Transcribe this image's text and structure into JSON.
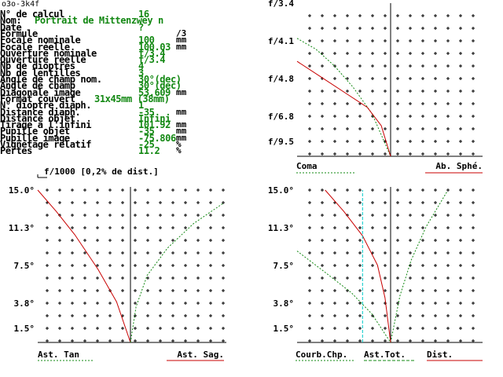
{
  "window_title": "o3o-3k4f",
  "params": [
    {
      "label": "N° de calcul",
      "value": "16",
      "unit": ""
    },
    {
      "label": "Nom:",
      "value": "Portrait de Mittenzwey n",
      "unit": "",
      "long": true
    },
    {
      "label": "Date",
      "value": "?",
      "unit": ""
    },
    {
      "label": "Formule",
      "value": "",
      "unit": "/3"
    },
    {
      "label": "Focale nominale",
      "value": "100",
      "unit": "mm"
    },
    {
      "label": "Focale réelle",
      "value": "100.03",
      "unit": "mm"
    },
    {
      "label": "Ouverture nominale",
      "value": "f/3.4",
      "unit": ""
    },
    {
      "label": "Ouverture réelle",
      "value": "f/3.4",
      "unit": ""
    },
    {
      "label": "Nb de dioptres",
      "value": "4",
      "unit": ""
    },
    {
      "label": "Nb de lentilles",
      "value": "3",
      "unit": ""
    },
    {
      "label": "Angle de champ nom.",
      "value": "30°(dec)",
      "unit": ""
    },
    {
      "label": "Angle de champ",
      "value": "30°(dec)",
      "unit": ""
    },
    {
      "label": "Diagonale image",
      "value": "53.609",
      "unit": "mm"
    },
    {
      "label": "Format couvert",
      "value": "31x45mm (38mm)",
      "unit": "",
      "long": true
    },
    {
      "label": "N° dioptre diaph.",
      "value": "1",
      "unit": ""
    },
    {
      "label": "Distance diaph.",
      "value": "-35",
      "unit": "mm"
    },
    {
      "label": "Distance objet",
      "value": "Infini",
      "unit": ""
    },
    {
      "label": "Tirage à l'infini",
      "value": "101.92",
      "unit": "mm"
    },
    {
      "label": "Pupille objet",
      "value": "-35",
      "unit": "mm"
    },
    {
      "label": "Pupille image",
      "value": "-75.806",
      "unit": "mm"
    },
    {
      "label": "Vignetage relatif",
      "value": "-25",
      "unit": "%"
    },
    {
      "label": "Pertes",
      "value": "11.2",
      "unit": "%"
    }
  ],
  "scale_note": "f/1000 [0,2% de dist.]",
  "colors": {
    "red": "#c80000",
    "green": "#138813",
    "cyan": "#00c8c8",
    "text": "#000000"
  },
  "chart_data": [
    {
      "type": "line",
      "title": "",
      "ylabels": [
        "f/3.4",
        "f/4.1",
        "f/4.8",
        "f/6.8",
        "f/9.5"
      ],
      "series": [
        {
          "name": "Coma",
          "color": "#138813",
          "style": "dotted",
          "points": [
            [
              -1.0,
              0.23
            ],
            [
              -0.8,
              0.3
            ],
            [
              -0.6,
              0.41
            ],
            [
              -0.4,
              0.55
            ],
            [
              -0.2,
              0.72
            ],
            [
              0,
              1.0
            ]
          ]
        },
        {
          "name": "Ab. Sphé.",
          "color": "#c80000",
          "style": "solid",
          "points": [
            [
              -1.0,
              0.38
            ],
            [
              -0.75,
              0.48
            ],
            [
              -0.45,
              0.6
            ],
            [
              -0.25,
              0.68
            ],
            [
              -0.1,
              0.8
            ],
            [
              0,
              1.0
            ]
          ]
        }
      ],
      "legend": [
        "Coma",
        "Ab. Sphé."
      ]
    },
    {
      "type": "line",
      "title": "",
      "ylabels": [
        "15.0°",
        "11.3°",
        "7.5°",
        "3.8°",
        "1.5°"
      ],
      "series": [
        {
          "name": "Ast. Tan",
          "color": "#c80000",
          "style": "solid",
          "points": [
            [
              -1.0,
              15.0
            ],
            [
              -0.8,
              12.9
            ],
            [
              -0.6,
              10.6
            ],
            [
              -0.35,
              7.2
            ],
            [
              -0.15,
              4.0
            ],
            [
              0,
              0.0
            ]
          ]
        },
        {
          "name": "Ast. Sag.",
          "color": "#138813",
          "style": "dotted",
          "points": [
            [
              0,
              0.0
            ],
            [
              0.06,
              3.5
            ],
            [
              0.18,
              6.6
            ],
            [
              0.4,
              9.3
            ],
            [
              0.68,
              11.7
            ],
            [
              1.0,
              13.7
            ]
          ]
        }
      ],
      "legend": [
        "Ast. Tan",
        "Ast. Sag."
      ]
    },
    {
      "type": "line",
      "title": "",
      "ylabels": [
        "15.0°",
        "11.3°",
        "7.5°",
        "3.8°",
        "1.5°"
      ],
      "series": [
        {
          "name": "Courb.Chp.",
          "color": "#138813",
          "style": "dotted",
          "points": [
            [
              -1.0,
              9.0
            ],
            [
              -0.7,
              6.9
            ],
            [
              -0.42,
              4.9
            ],
            [
              -0.2,
              2.8
            ],
            [
              0,
              0.0
            ]
          ]
        },
        {
          "name": "Ast.Tot.",
          "color": "#138813",
          "style": "dotted",
          "points": [
            [
              0,
              0.0
            ],
            [
              0.1,
              4.6
            ],
            [
              0.22,
              8.1
            ],
            [
              0.38,
              11.4
            ],
            [
              0.6,
              14.8
            ]
          ]
        },
        {
          "name": "Dist.",
          "color": "#c80000",
          "style": "solid",
          "points": [
            [
              -0.7,
              15.0
            ],
            [
              -0.5,
              12.9
            ],
            [
              -0.3,
              10.5
            ],
            [
              -0.14,
              7.6
            ],
            [
              -0.06,
              4.4
            ],
            [
              0,
              0.0
            ]
          ]
        },
        {
          "name": "ref",
          "color": "#00c8c8",
          "style": "dashed",
          "points": [
            [
              -0.3,
              0.0
            ],
            [
              -0.3,
              15.0
            ]
          ]
        }
      ],
      "legend": [
        "Courb.Chp.",
        "Ast.Tot.",
        "Dist."
      ]
    }
  ]
}
